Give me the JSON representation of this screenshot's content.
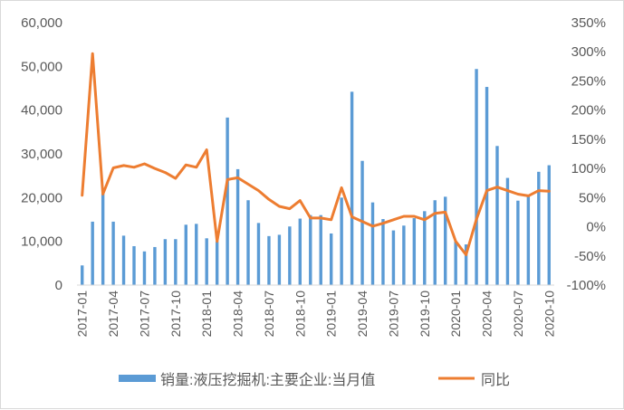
{
  "chart_data": {
    "type": "bar",
    "title": "",
    "xlabel": "",
    "ylabel": "",
    "categories": [
      "2017-01",
      "2017-02",
      "2017-03",
      "2017-04",
      "2017-05",
      "2017-06",
      "2017-07",
      "2017-08",
      "2017-09",
      "2017-10",
      "2017-11",
      "2017-12",
      "2018-01",
      "2018-02",
      "2018-03",
      "2018-04",
      "2018-05",
      "2018-06",
      "2018-07",
      "2018-08",
      "2018-09",
      "2018-10",
      "2018-11",
      "2018-12",
      "2019-01",
      "2019-02",
      "2019-03",
      "2019-04",
      "2019-05",
      "2019-06",
      "2019-07",
      "2019-08",
      "2019-09",
      "2019-10",
      "2019-11",
      "2019-12",
      "2020-01",
      "2020-02",
      "2020-03",
      "2020-04",
      "2020-05",
      "2020-06",
      "2020-07",
      "2020-08",
      "2020-09",
      "2020-10"
    ],
    "x_tick_labels": [
      "2017-01",
      "2017-04",
      "2017-07",
      "2017-10",
      "2018-01",
      "2018-04",
      "2018-07",
      "2018-10",
      "2019-01",
      "2019-04",
      "2019-07",
      "2019-10",
      "2020-01",
      "2020-04",
      "2020-07",
      "2020-10"
    ],
    "series": [
      {
        "name": "销量:液压挖掘机:主要企业:当月值",
        "type": "bar",
        "axis": "left",
        "color": "#5b9bd5",
        "values": [
          4500,
          14500,
          21000,
          14500,
          11300,
          8900,
          7700,
          8700,
          10500,
          10500,
          13800,
          14000,
          10700,
          10000,
          38300,
          26500,
          19400,
          14200,
          11200,
          11500,
          13400,
          15200,
          16000,
          16000,
          11800,
          20000,
          44200,
          28400,
          18900,
          15100,
          12500,
          13600,
          15300,
          16900,
          19400,
          20200,
          10000,
          9300,
          49400,
          45300,
          31800,
          24500,
          19300,
          20500,
          25900,
          27400
        ]
      },
      {
        "name": "同比",
        "type": "line",
        "axis": "right",
        "color": "#ed7d31",
        "values": [
          54,
          297,
          56,
          101,
          105,
          102,
          108,
          100,
          93,
          83,
          106,
          102,
          132,
          -25,
          81,
          84,
          73,
          62,
          47,
          35,
          31,
          45,
          15,
          15,
          12,
          67,
          17,
          9,
          1,
          6,
          12,
          18,
          18,
          12,
          23,
          25,
          -25,
          -48,
          13,
          62,
          68,
          62,
          56,
          53,
          62,
          61
        ]
      }
    ],
    "y_left": {
      "lim": [
        0,
        60000
      ],
      "ticks": [
        "0",
        "10,000",
        "20,000",
        "30,000",
        "40,000",
        "50,000",
        "60,000"
      ]
    },
    "y_right": {
      "lim": [
        -100,
        350
      ],
      "ticks": [
        "-100%",
        "-50%",
        "0%",
        "50%",
        "100%",
        "150%",
        "200%",
        "250%",
        "300%",
        "350%"
      ]
    },
    "grid": false,
    "legend_position": "bottom"
  }
}
